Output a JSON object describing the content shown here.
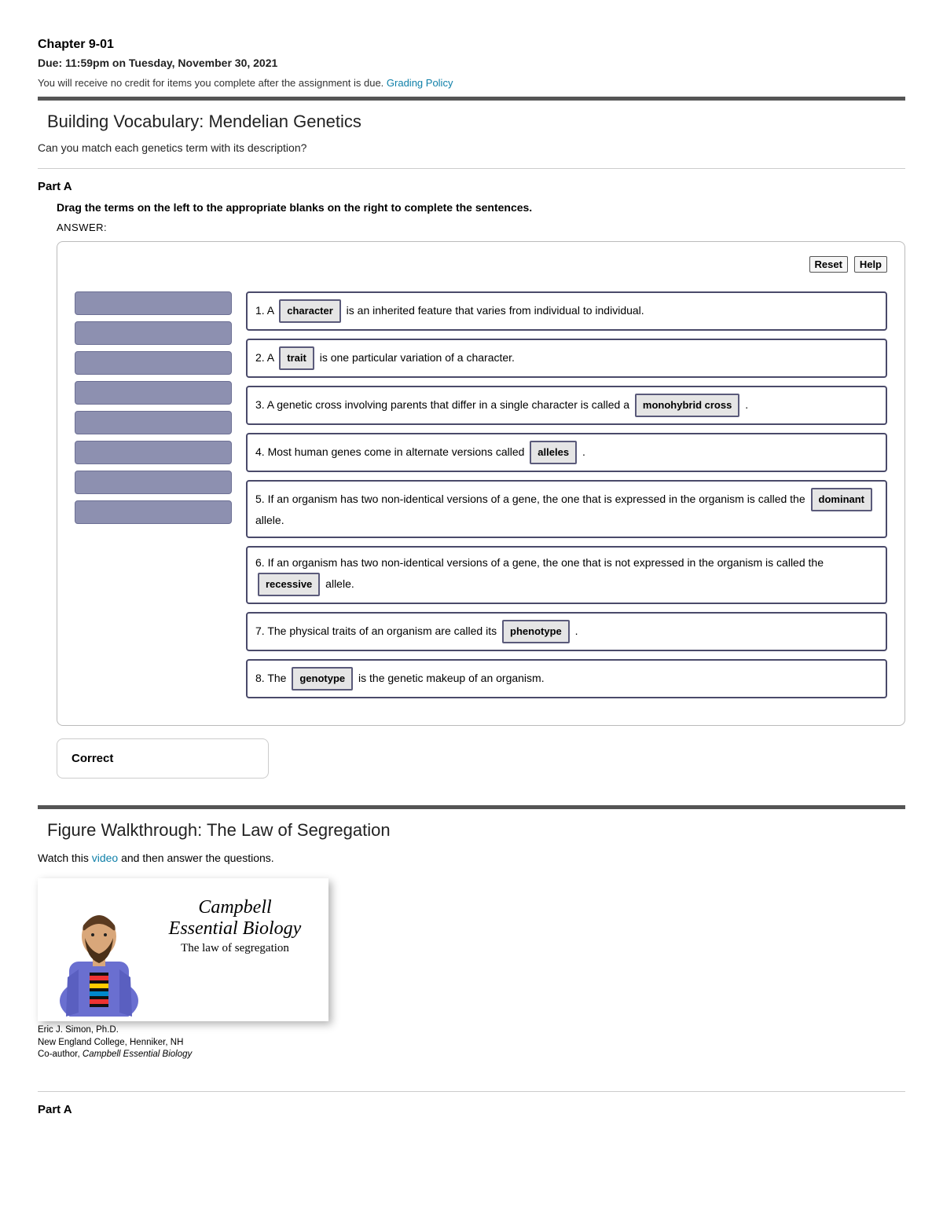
{
  "header": {
    "chapter": "Chapter 9-01",
    "due": "Due: 11:59pm on Tuesday, November 30, 2021",
    "credit_prefix": "You will receive no credit for items you complete after the assignment is due. ",
    "grading_link": "Grading Policy"
  },
  "section1": {
    "title": "Building Vocabulary: Mendelian Genetics",
    "lead": "Can you match each genetics term with its description?",
    "part_label": "Part A",
    "instruction": "Drag the terms on the left to the appropriate blanks on the right to complete the sentences.",
    "answer_label": "ANSWER:",
    "reset_label": "Reset",
    "help_label": "Help",
    "source_slot_count": 8,
    "sentences": [
      {
        "prefix": "1. A ",
        "term": "character",
        "suffix": " is an inherited feature that varies from individual to individual."
      },
      {
        "prefix": "2. A ",
        "term": "trait",
        "suffix": " is one particular variation of a character."
      },
      {
        "prefix": "3. A genetic cross involving parents that differ in a single character is called a ",
        "term": "monohybrid cross",
        "suffix": " ."
      },
      {
        "prefix": "4. Most human genes come in alternate versions called ",
        "term": "alleles",
        "suffix": " ."
      },
      {
        "prefix": "5. If an organism has two non-identical versions of a gene, the one that is expressed in the organism is called the ",
        "term": "dominant",
        "suffix": " allele."
      },
      {
        "prefix": "6. If an organism has two non-identical versions of a gene, the one that is not expressed in the organism is called the ",
        "term": "recessive",
        "suffix": " allele."
      },
      {
        "prefix": "7. The physical traits of an organism are called its ",
        "term": "phenotype",
        "suffix": " ."
      },
      {
        "prefix": "8. The ",
        "term": "genotype",
        "suffix": " is the genetic makeup of an organism."
      }
    ],
    "feedback": "Correct"
  },
  "section2": {
    "title": "Figure Walkthrough: The Law of Segregation",
    "watch_prefix": "Watch this ",
    "watch_link": "video",
    "watch_suffix": " and then answer the questions.",
    "video": {
      "title_line1": "Campbell",
      "title_line2": "Essential Biology",
      "subtitle": "The law of segregation"
    },
    "presenter": {
      "name": "Eric J. Simon, Ph.D.",
      "affiliation": "New England College, Henniker, NH",
      "role_prefix": "Co-author, ",
      "role_title": "Campbell Essential Biology"
    },
    "part_label": "Part A"
  },
  "colors": {
    "rule_dark": "#555555",
    "rule_light": "#cccccc",
    "link": "#0e7fa8",
    "slot_bg": "#8d90b0",
    "slot_border": "#6c6f94",
    "box_border": "#4a4a6a",
    "chip_bg": "#e5e5e5",
    "presenter_shirt": "#6a6fd0",
    "presenter_skin": "#d9a77a",
    "presenter_hair": "#5a3a20"
  }
}
